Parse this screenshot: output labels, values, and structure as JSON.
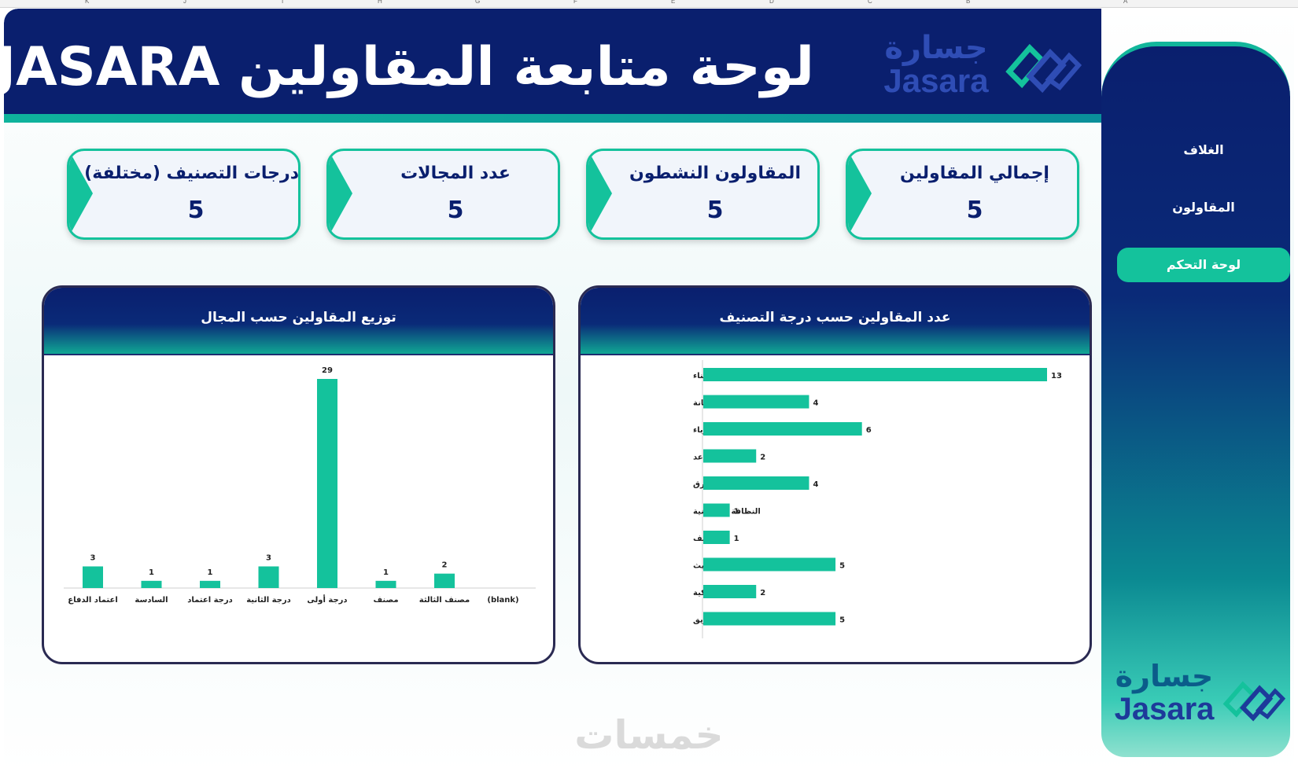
{
  "excel_columns": [
    "K",
    "J",
    "I",
    "H",
    "G",
    "F",
    "E",
    "D",
    "C",
    "B",
    "A"
  ],
  "header": {
    "title": "لوحة متابعة المقاولين JASARA"
  },
  "logo": {
    "arabic": "جسارة",
    "english": "Jasara"
  },
  "sidebar": {
    "items": [
      {
        "label": "الغلاف",
        "active": false
      },
      {
        "label": "المقاولون",
        "active": false
      },
      {
        "label": "لوحة التحكم",
        "active": true
      }
    ]
  },
  "kpis": [
    {
      "title": "إجمالي المقاولين",
      "value": "5"
    },
    {
      "title": "المقاولون النشطون",
      "value": "5"
    },
    {
      "title": "عدد المجالات",
      "value": "5"
    },
    {
      "title": "درجات التصنيف (مختلفة)",
      "value": "5"
    }
  ],
  "panels": {
    "right_title": "عدد المقاولين حسب درجة التصنيف",
    "left_title": "توزيع المقاولين حسب المجال"
  },
  "chart_data": [
    {
      "type": "bar",
      "orientation": "horizontal",
      "title": "عدد المقاولين حسب درجة التصنيف",
      "categories": [
        "مجال التشييد والبناء",
        "مجال التشغيل والصيانة",
        "كهرباء",
        "سلامة و مصاعد",
        "انشاء طرق",
        "النظافة والصيانية",
        "التكييف",
        "التطوير البنا الحديث",
        "أعمال ميكانيكية",
        "استشارات الوقاية من الحريق"
      ],
      "values": [
        13,
        4,
        6,
        2,
        4,
        1,
        1,
        5,
        2,
        5
      ],
      "xlim": [
        0,
        13
      ],
      "color": "#14c29c"
    },
    {
      "type": "bar",
      "orientation": "vertical",
      "title": "توزيع المقاولين حسب المجال",
      "categories": [
        "اعتماد الدفاع",
        "السادسة",
        "درجة اعتماد",
        "درجة الثانية",
        "درجة أولى",
        "مصنف",
        "مصنف الثالثة",
        "(blank)"
      ],
      "values": [
        3,
        1,
        1,
        3,
        29,
        1,
        2,
        null
      ],
      "ylim": [
        0,
        29
      ],
      "color": "#14c29c"
    }
  ],
  "watermark": "خمسات"
}
